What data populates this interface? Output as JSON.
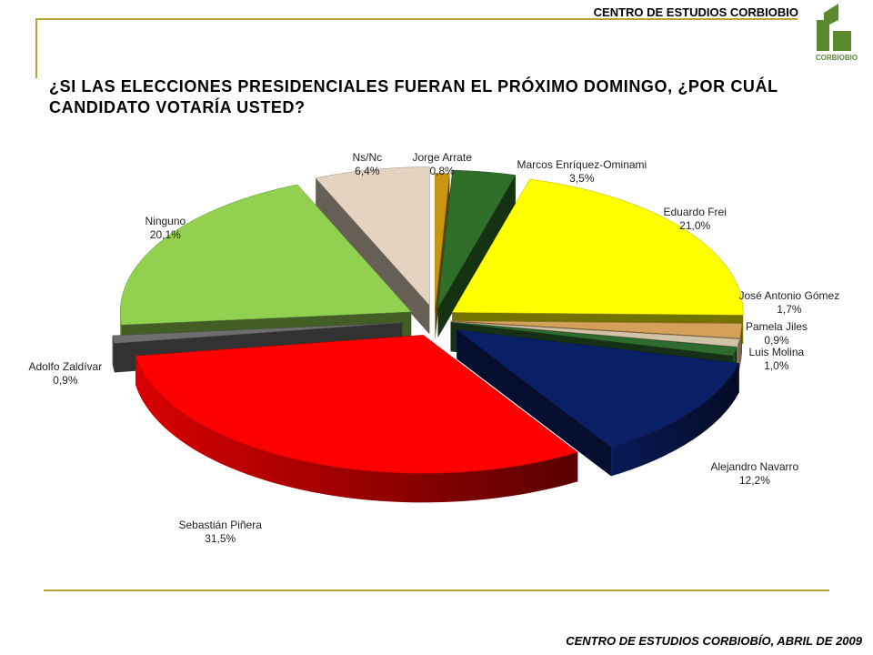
{
  "header": {
    "organization": "CENTRO DE ESTUDIOS CORBIOBIO",
    "logo_text": "CORBIOBIO"
  },
  "footer": {
    "source": "CENTRO DE ESTUDIOS CORBIOBÍO,  ABRIL DE 2009"
  },
  "colors": {
    "frame": "#b8a335",
    "logo_green": "#5b8a2e"
  },
  "chart_data": {
    "type": "pie",
    "style": "3d-exploded",
    "title": "¿SI LAS ELECCIONES PRESIDENCIALES FUERAN EL PRÓXIMO DOMINGO, ¿POR CUÁL CANDIDATO VOTARÍA USTED?",
    "unit": "%",
    "slices": [
      {
        "name": "Jorge Arrate",
        "value": 0.8,
        "label": "0,8%",
        "color": "#c8960f"
      },
      {
        "name": "Marcos Enríquez-Ominami",
        "value": 3.5,
        "label": "3,5%",
        "color": "#2f6f2a"
      },
      {
        "name": "Eduardo Frei",
        "value": 21.0,
        "label": "21,0%",
        "color": "#ffff00"
      },
      {
        "name": "José Antonio Gómez",
        "value": 1.7,
        "label": "1,7%",
        "color": "#d4a05a"
      },
      {
        "name": "Pamela Jiles",
        "value": 0.9,
        "label": "0,9%",
        "color": "#d2c2a6"
      },
      {
        "name": "Luis Molina",
        "value": 1.0,
        "label": "1,0%",
        "color": "#2e6b2e"
      },
      {
        "name": "Alejandro Navarro",
        "value": 12.2,
        "label": "12,2%",
        "color": "#0a1f66"
      },
      {
        "name": "Sebastián Piñera",
        "value": 31.5,
        "label": "31,5%",
        "color": "#ff0000"
      },
      {
        "name": "Adolfo Zaldívar",
        "value": 0.9,
        "label": "0,9%",
        "color": "#6e6e6e"
      },
      {
        "name": "Ninguno",
        "value": 20.1,
        "label": "20,1%",
        "color": "#92d050"
      },
      {
        "name": "Ns/Nc",
        "value": 6.4,
        "label": "6,4%",
        "color": "#e3d3c0"
      }
    ]
  }
}
